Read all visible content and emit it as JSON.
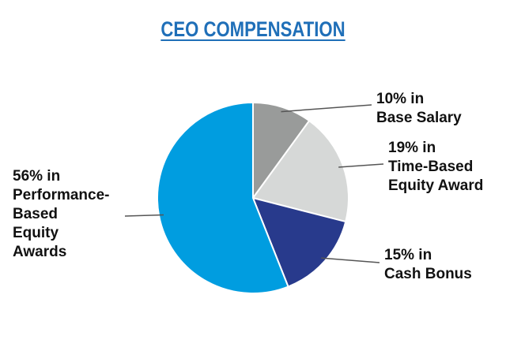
{
  "title": "CEO COMPENSATION",
  "chart_data": {
    "type": "pie",
    "title": "CEO COMPENSATION",
    "slices": [
      {
        "label": "Base Salary",
        "value": 10,
        "color": "#999b9a",
        "text_lines": [
          "10% in",
          "Base Salary"
        ]
      },
      {
        "label": "Time-Based Equity Award",
        "value": 19,
        "color": "#d6d8d7",
        "text_lines": [
          "19% in",
          "Time-Based",
          "Equity Award"
        ]
      },
      {
        "label": "Cash Bonus",
        "value": 15,
        "color": "#283a8c",
        "text_lines": [
          "15% in",
          "Cash Bonus"
        ]
      },
      {
        "label": "Performance-Based Equity Awards",
        "value": 56,
        "color": "#009de0",
        "text_lines": [
          "56% in",
          "Performance-",
          "Based",
          "Equity",
          "Awards"
        ]
      }
    ],
    "start_angle_deg": 0,
    "direction": "clockwise",
    "legend": "none"
  }
}
